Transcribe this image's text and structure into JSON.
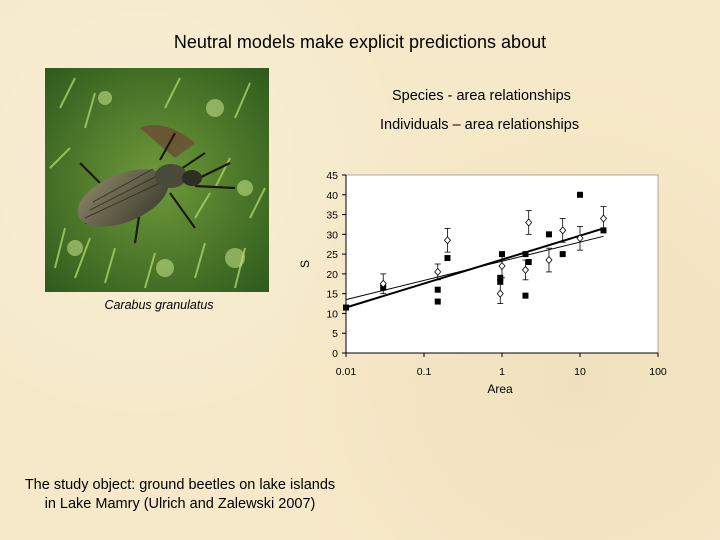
{
  "slide": {
    "title": "Neutral models make explicit predictions about",
    "bullets": [
      "Species - area relationships",
      "Individuals – area relationships"
    ],
    "photo_caption": "Carabus granulatus",
    "footer_lines": [
      "The study object: ground beetles on lake islands",
      "in Lake Mamry (Ulrich and Zalewski 2007)"
    ],
    "photo_icon": "beetle-photo-icon"
  },
  "chart_data": {
    "type": "scatter",
    "xlabel": "Area",
    "ylabel": "S",
    "xscale": "log",
    "xlim": [
      0.01,
      100
    ],
    "ylim": [
      0,
      45
    ],
    "xticks": [
      "0.01",
      "0.1",
      "1",
      "10",
      "100"
    ],
    "yticks": [
      "0",
      "5",
      "10",
      "15",
      "20",
      "25",
      "30",
      "35",
      "40",
      "45"
    ],
    "grid": false,
    "legend": "none",
    "series": [
      {
        "marker": "filled-square",
        "x": [
          0.01,
          0.03,
          0.15,
          0.15,
          0.2,
          0.95,
          0.95,
          1.0,
          2.0,
          2.0,
          2.2,
          4.0,
          6.0,
          10.0,
          20.0
        ],
        "y": [
          11.5,
          16.5,
          16.0,
          13.0,
          24.0,
          19.0,
          18.0,
          25.0,
          25.0,
          14.5,
          23.0,
          30.0,
          25.0,
          40.0,
          31.0
        ]
      },
      {
        "marker": "open-diamond",
        "x": [
          0.03,
          0.15,
          0.2,
          0.95,
          1.0,
          2.0,
          2.2,
          4.0,
          6.0,
          10.0,
          20.0
        ],
        "y": [
          17.5,
          20.5,
          28.5,
          15.0,
          22.0,
          21.0,
          33.0,
          23.5,
          31.0,
          29.0,
          34.0
        ],
        "err": [
          2.5,
          2.0,
          3.0,
          2.5,
          3.0,
          2.5,
          3.0,
          3.0,
          3.0,
          3.0,
          3.0
        ]
      }
    ],
    "fits": [
      {
        "x": [
          0.01,
          20
        ],
        "y": [
          11.5,
          31.5
        ]
      },
      {
        "x": [
          0.01,
          20
        ],
        "y": [
          13.5,
          29.5
        ]
      }
    ],
    "colors": {
      "marker": "#000000",
      "axis": "#000000",
      "plot_bg": "#ffffff"
    }
  }
}
